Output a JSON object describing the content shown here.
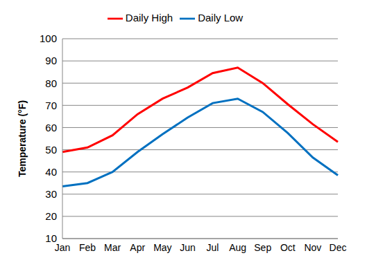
{
  "chart_data": {
    "type": "line",
    "y_label": "Temperature (°F)",
    "categories": [
      "Jan",
      "Feb",
      "Mar",
      "Apr",
      "May",
      "Jun",
      "Jul",
      "Aug",
      "Sep",
      "Oct",
      "Nov",
      "Dec"
    ],
    "series": [
      {
        "name": "Daily High",
        "color": "#ff0000",
        "values": [
          49,
          51,
          56.5,
          66,
          73,
          78,
          84.5,
          87,
          80,
          70.5,
          61.5,
          53.5
        ]
      },
      {
        "name": "Daily Low",
        "color": "#0070c0",
        "values": [
          33.5,
          35,
          40,
          49,
          57,
          64.5,
          71,
          73,
          67,
          57.5,
          46.5,
          38.5
        ]
      }
    ],
    "ylim": [
      10,
      100
    ],
    "yticks": [
      10,
      20,
      30,
      40,
      50,
      60,
      70,
      80,
      90,
      100
    ],
    "grid": true,
    "legend": "top"
  }
}
